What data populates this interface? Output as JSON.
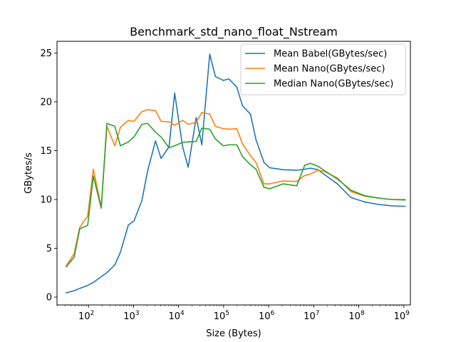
{
  "chart_data": {
    "type": "line",
    "title": "Benchmark_std_nano_float_Nstream",
    "xlabel": "Size (Bytes)",
    "ylabel": "GBytes/s",
    "xscale": "log",
    "xlim": [
      20,
      1400000000
    ],
    "ylim": [
      -0.8,
      26.2
    ],
    "xticks": [
      {
        "value": 100,
        "base": "10",
        "exp": "2"
      },
      {
        "value": 1000,
        "base": "10",
        "exp": "3"
      },
      {
        "value": 10000,
        "base": "10",
        "exp": "4"
      },
      {
        "value": 100000,
        "base": "10",
        "exp": "5"
      },
      {
        "value": 1000000,
        "base": "10",
        "exp": "6"
      },
      {
        "value": 10000000,
        "base": "10",
        "exp": "7"
      },
      {
        "value": 100000000,
        "base": "10",
        "exp": "8"
      },
      {
        "value": 1000000000,
        "base": "10",
        "exp": "9"
      }
    ],
    "yticks": [
      0,
      5,
      10,
      15,
      20,
      25
    ],
    "grid": false,
    "legend_position": "top-right",
    "x": [
      32,
      48,
      64,
      96,
      128,
      192,
      256,
      384,
      512,
      768,
      1024,
      1536,
      2048,
      3072,
      4096,
      6144,
      8192,
      12288,
      16384,
      24576,
      32768,
      49152,
      65536,
      98304,
      131072,
      196608,
      262144,
      393216,
      524288,
      786432,
      1048576,
      2097152,
      4194304,
      6291456,
      8388608,
      12582912,
      16777216,
      33554432,
      67108864,
      134217728,
      268435456,
      536870912,
      1073741824
    ],
    "series": [
      {
        "name": "Mean Babel(GBytes/sec)",
        "color": "#1f77b4",
        "values": [
          0.45,
          0.65,
          0.9,
          1.2,
          1.5,
          2.1,
          2.5,
          3.3,
          4.6,
          7.4,
          7.8,
          9.9,
          12.9,
          16.0,
          14.2,
          15.4,
          20.9,
          15.4,
          13.3,
          18.4,
          15.6,
          24.9,
          22.6,
          22.2,
          22.35,
          21.5,
          19.6,
          18.75,
          16.1,
          13.8,
          13.25,
          13.05,
          13.0,
          13.1,
          13.2,
          13.05,
          12.6,
          11.6,
          10.2,
          9.75,
          9.5,
          9.35,
          9.3
        ]
      },
      {
        "name": "Mean Nano(GBytes/sec)",
        "color": "#ff7f0e",
        "values": [
          3.2,
          4.45,
          7.15,
          8.3,
          13.1,
          9.25,
          17.5,
          15.5,
          17.4,
          18.1,
          18.0,
          19.0,
          19.2,
          19.1,
          18.0,
          17.95,
          17.6,
          18.1,
          17.7,
          17.9,
          18.9,
          18.75,
          17.5,
          17.25,
          17.2,
          17.25,
          15.7,
          14.5,
          13.8,
          11.6,
          11.6,
          11.9,
          11.85,
          12.45,
          12.6,
          13.0,
          12.9,
          12.2,
          10.8,
          10.35,
          10.15,
          10.0,
          10.0
        ]
      },
      {
        "name": "Median Nano(GBytes/sec)",
        "color": "#2ca02c",
        "values": [
          3.1,
          4.1,
          7.0,
          7.35,
          12.4,
          9.1,
          17.8,
          17.5,
          15.5,
          15.9,
          16.4,
          17.7,
          17.8,
          16.9,
          16.4,
          15.3,
          15.5,
          15.85,
          15.9,
          15.95,
          17.3,
          17.2,
          16.2,
          15.5,
          15.6,
          15.6,
          14.4,
          13.55,
          13.1,
          11.25,
          11.1,
          11.6,
          11.4,
          13.5,
          13.7,
          13.4,
          13.0,
          12.1,
          10.95,
          10.4,
          10.15,
          10.0,
          9.95
        ]
      }
    ]
  }
}
